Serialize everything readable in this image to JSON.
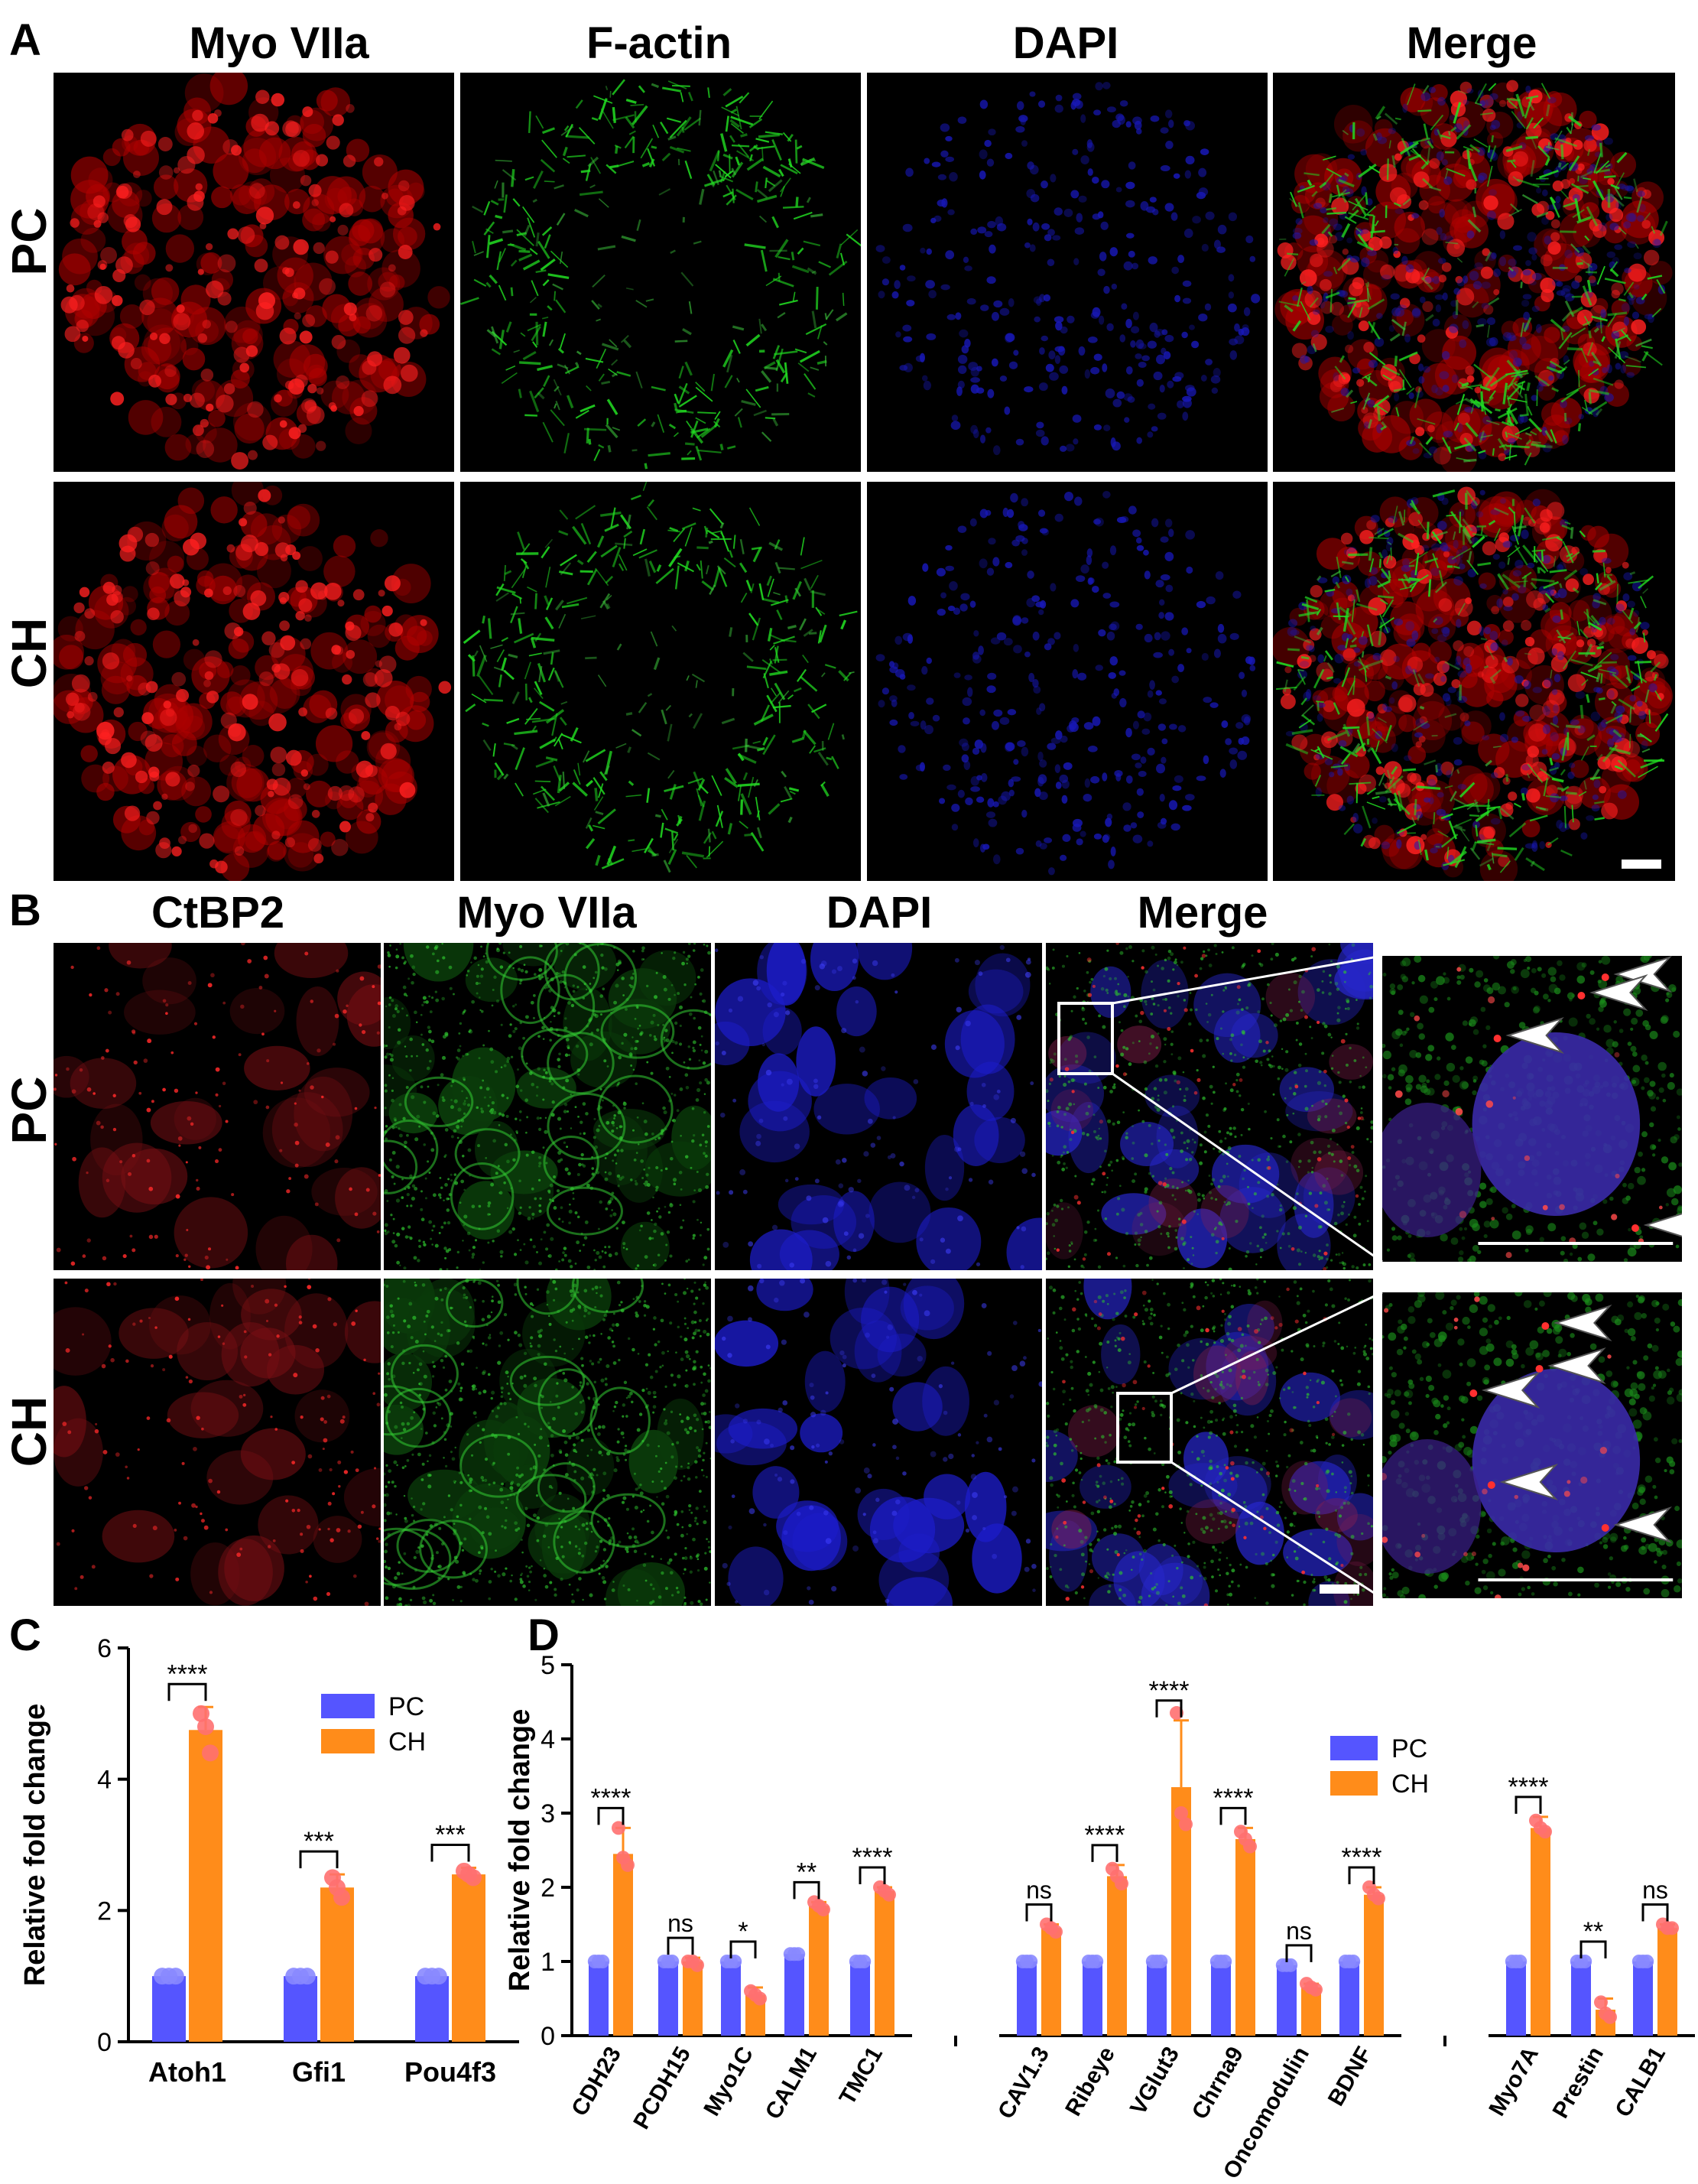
{
  "figure": {
    "panels": {
      "a": {
        "label": "A",
        "columns": [
          "Myo VIIa",
          "F-actin",
          "DAPI",
          "Merge"
        ],
        "rows": [
          "PC",
          "CH"
        ]
      },
      "b": {
        "label": "B",
        "columns": [
          "CtBP2",
          "Myo VIIa",
          "DAPI",
          "Merge"
        ],
        "rows": [
          "PC",
          "CH"
        ]
      },
      "c": {
        "label": "C"
      },
      "d": {
        "label": "D"
      }
    },
    "colors": {
      "red": "#ff2020",
      "green": "#22dd22",
      "blue": "#2a2aff",
      "pc": "#5555ff",
      "ch": "#ff8c1a",
      "dot": "#ff7070"
    }
  },
  "chart_data": [
    {
      "type": "bar",
      "panel": "C",
      "ylabel": "Relative fold change",
      "ylim": [
        0,
        6
      ],
      "yticks": [
        0,
        2,
        4,
        6
      ],
      "legend": "top-right",
      "categories": [
        "Atoh1",
        "Gfi1",
        "Pou4f3"
      ],
      "series": [
        {
          "name": "PC",
          "values": [
            1.0,
            1.0,
            1.0
          ]
        },
        {
          "name": "CH",
          "values": [
            4.75,
            2.35,
            2.55
          ]
        }
      ],
      "ch_error": [
        0.35,
        0.2,
        0.1
      ],
      "ch_points": [
        [
          5.0,
          4.8,
          4.4
        ],
        [
          2.5,
          2.35,
          2.2
        ],
        [
          2.6,
          2.55,
          2.5
        ]
      ],
      "significance": [
        "****",
        "***",
        "***"
      ]
    },
    {
      "type": "bar",
      "panel": "D",
      "ylabel": "Relative fold change",
      "ylim": [
        0,
        5
      ],
      "yticks": [
        0,
        1,
        2,
        3,
        4,
        5
      ],
      "legend": "top-right",
      "categories": [
        "CDH23",
        "PCDH15",
        "Myo1C",
        "CALM1",
        "TMC1",
        "CAV1.3",
        "Ribeye",
        "VGlut3",
        "Chrna9",
        "Oncomodulin",
        "BDNF",
        "Myo7A",
        "Prestin",
        "CALB1"
      ],
      "groups": [
        [
          0,
          4
        ],
        [
          5,
          10
        ],
        [
          11,
          13
        ]
      ],
      "series": [
        {
          "name": "PC",
          "values": [
            1.0,
            1.0,
            1.0,
            1.1,
            1.0,
            1.0,
            1.0,
            1.0,
            1.0,
            0.95,
            1.0,
            1.0,
            1.0,
            1.0
          ]
        },
        {
          "name": "CH",
          "values": [
            2.45,
            1.0,
            0.55,
            1.75,
            1.95,
            1.45,
            2.15,
            3.35,
            2.65,
            0.65,
            1.9,
            2.8,
            0.35,
            1.45
          ]
        }
      ],
      "ch_error": [
        0.35,
        0.05,
        0.1,
        0.05,
        0.05,
        0.05,
        0.15,
        0.9,
        0.15,
        0.05,
        0.1,
        0.15,
        0.15,
        0.05
      ],
      "ch_points": [
        [
          2.8,
          2.4,
          2.3
        ],
        [
          1.0,
          1.0,
          0.95
        ],
        [
          0.6,
          0.55,
          0.5
        ],
        [
          1.8,
          1.75,
          1.7
        ],
        [
          2.0,
          1.95,
          1.9
        ],
        [
          1.5,
          1.45,
          1.4
        ],
        [
          2.25,
          2.15,
          2.05
        ],
        [
          4.35,
          3.0,
          2.85
        ],
        [
          2.75,
          2.65,
          2.55
        ],
        [
          0.7,
          0.65,
          0.62
        ],
        [
          2.0,
          1.9,
          1.85
        ],
        [
          2.9,
          2.8,
          2.75
        ],
        [
          0.45,
          0.3,
          0.25
        ],
        [
          1.5,
          1.45,
          1.45
        ]
      ],
      "significance": [
        "****",
        "ns",
        "*",
        "**",
        "****",
        "ns",
        "****",
        "****",
        "****",
        "ns",
        "****",
        "****",
        "**",
        "ns"
      ]
    }
  ]
}
